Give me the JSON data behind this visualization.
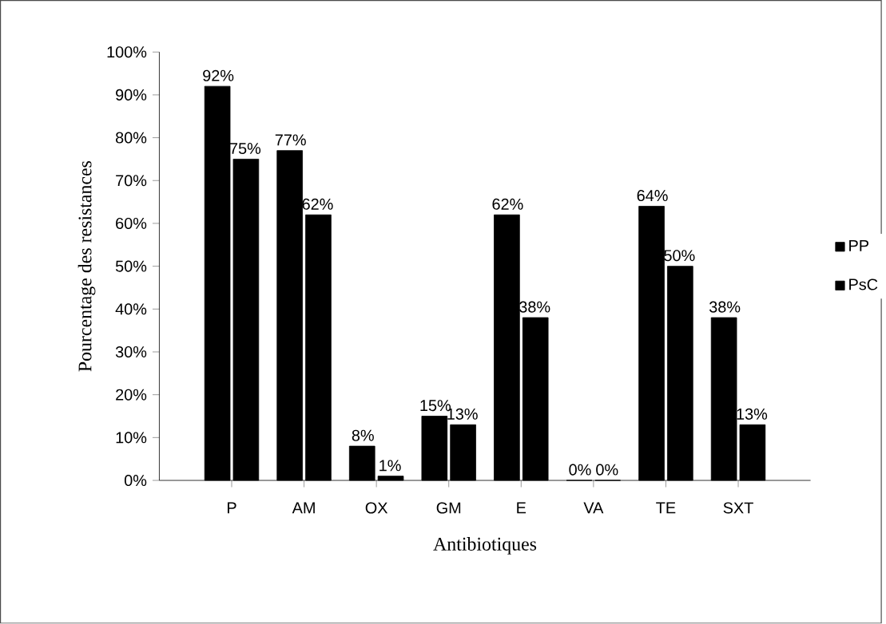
{
  "chart_data": {
    "type": "bar",
    "xlabel": "Antibiotiques",
    "ylabel": "Pourcentage des resistances",
    "categories": [
      "P",
      "AM",
      "OX",
      "GM",
      "E",
      "VA",
      "TE",
      "SXT"
    ],
    "series": [
      {
        "name": "PP",
        "color": "#000000",
        "values": [
          92,
          77,
          8,
          15,
          62,
          0,
          64,
          38
        ],
        "value_labels": [
          "92%",
          "77%",
          "8%",
          "15%",
          "62%",
          "0%",
          "64%",
          "38%"
        ]
      },
      {
        "name": "PsC",
        "color": "#000000",
        "values": [
          75,
          62,
          1,
          13,
          38,
          0,
          50,
          13
        ],
        "value_labels": [
          "75%",
          "62%",
          "1%",
          "13%",
          "38%",
          "0%",
          "50%",
          "13%"
        ]
      }
    ],
    "ylim": [
      0,
      100
    ],
    "yticks": [
      {
        "value": 0,
        "label": "0%"
      },
      {
        "value": 10,
        "label": "10%"
      },
      {
        "value": 20,
        "label": "20%"
      },
      {
        "value": 30,
        "label": "30%"
      },
      {
        "value": 40,
        "label": "40%"
      },
      {
        "value": 50,
        "label": "50%"
      },
      {
        "value": 60,
        "label": "60%"
      },
      {
        "value": 70,
        "label": "70%"
      },
      {
        "value": 80,
        "label": "80%"
      },
      {
        "value": 90,
        "label": "90%"
      },
      {
        "value": 100,
        "label": "100%"
      }
    ],
    "legend": "right",
    "grid": false
  }
}
